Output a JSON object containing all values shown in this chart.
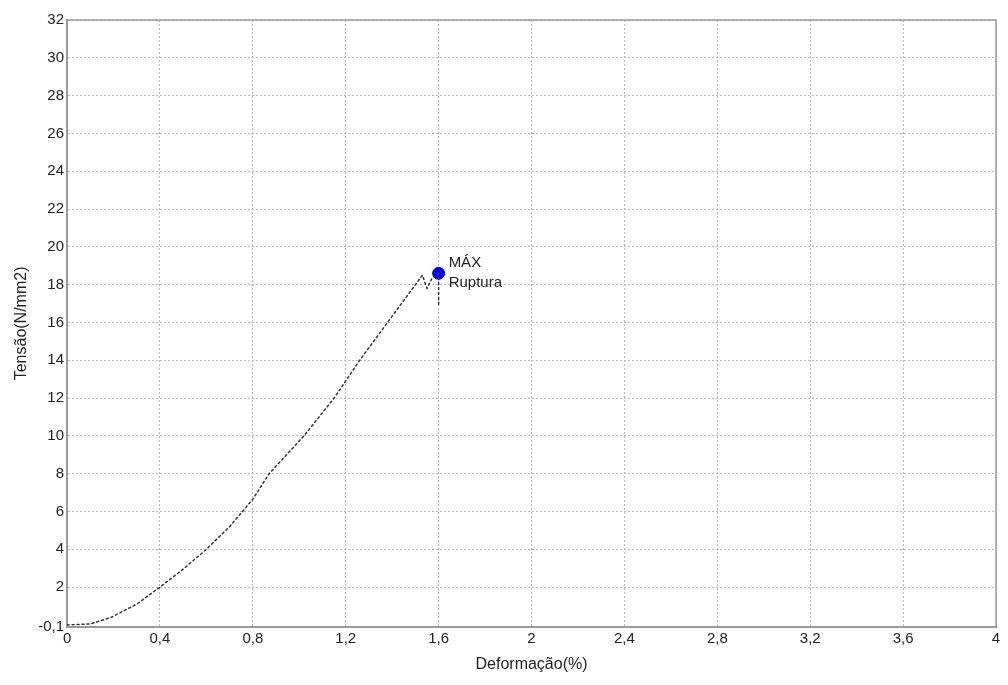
{
  "chart_data": {
    "type": "line",
    "xlabel": "Deformação(%)",
    "ylabel": "Tensão(N/mm2)",
    "xlim": [
      0,
      4
    ],
    "xticks": [
      0,
      {
        "value": 0.4,
        "label": "0,4"
      },
      {
        "value": 0.8,
        "label": "0,8"
      },
      {
        "value": 1.2,
        "label": "1,2"
      },
      {
        "value": 1.6,
        "label": "1,6"
      },
      2,
      {
        "value": 2.4,
        "label": "2,4"
      },
      {
        "value": 2.8,
        "label": "2,8"
      },
      {
        "value": 3.2,
        "label": "3,2"
      },
      {
        "value": 3.6,
        "label": "3,6"
      },
      4
    ],
    "ylim": [
      -0.1,
      32
    ],
    "yticks": [
      {
        "value": -0.1,
        "label": "-0,1"
      },
      2,
      4,
      6,
      8,
      10,
      12,
      14,
      16,
      18,
      20,
      22,
      24,
      26,
      28,
      30,
      32
    ],
    "grid": true,
    "legend": false,
    "series": [
      {
        "color": "#333333",
        "line_style": "dotted",
        "marker": "none",
        "x": [
          0,
          0.1,
          0.19,
          0.3,
          0.4,
          0.5,
          0.6,
          0.7,
          0.8,
          0.87,
          1.02,
          1.15,
          1.26,
          1.38,
          1.5,
          1.53,
          1.55,
          1.57,
          1.6,
          1.6
        ],
        "values": [
          0,
          0.05,
          0.4,
          1.1,
          2,
          2.95,
          4,
          5.2,
          6.65,
          8,
          10,
          12,
          14,
          16,
          18,
          18.5,
          17.8,
          18.3,
          18.6,
          16.8
        ]
      },
      {
        "type": "scatter",
        "color": "#0000ff",
        "marker": "circle",
        "x": [
          1.6
        ],
        "values": [
          18.6
        ]
      }
    ],
    "annotations": [
      {
        "text": "MÁX",
        "x": 1.6,
        "y": 18.6
      },
      {
        "text": "Ruptura",
        "x": 1.6,
        "y": 18.6
      }
    ]
  }
}
